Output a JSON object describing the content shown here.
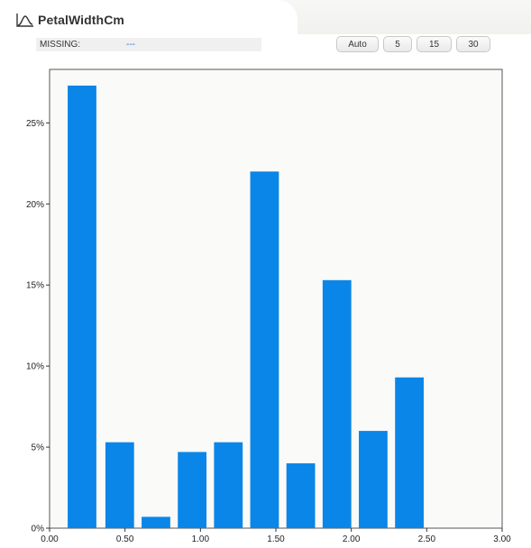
{
  "header": {
    "title": "PetalWidthCm"
  },
  "missing": {
    "label": "MISSING:",
    "value": "---"
  },
  "bin_buttons": [
    "Auto",
    "5",
    "15",
    "30"
  ],
  "chart_data": {
    "type": "bar",
    "title": "",
    "xlabel": "",
    "ylabel": "",
    "x_ticks": [
      "0.00",
      "0.50",
      "1.00",
      "1.50",
      "2.00",
      "2.50",
      "3.00"
    ],
    "y_ticks": [
      "0%",
      "5%",
      "10%",
      "15%",
      "20%",
      "25%"
    ],
    "xlim": [
      0,
      3
    ],
    "ylim": [
      0,
      28.3
    ],
    "bin_width": 0.24,
    "bins": [
      {
        "x_start": 0.12,
        "x_end": 0.31,
        "value": 27.3
      },
      {
        "x_start": 0.37,
        "x_end": 0.56,
        "value": 5.3
      },
      {
        "x_start": 0.61,
        "x_end": 0.8,
        "value": 0.7
      },
      {
        "x_start": 0.85,
        "x_end": 1.04,
        "value": 4.7
      },
      {
        "x_start": 1.09,
        "x_end": 1.28,
        "value": 5.3
      },
      {
        "x_start": 1.33,
        "x_end": 1.52,
        "value": 22.0
      },
      {
        "x_start": 1.57,
        "x_end": 1.76,
        "value": 4.0
      },
      {
        "x_start": 1.81,
        "x_end": 2.0,
        "value": 15.3
      },
      {
        "x_start": 2.05,
        "x_end": 2.24,
        "value": 6.0
      },
      {
        "x_start": 2.29,
        "x_end": 2.48,
        "value": 9.3
      }
    ],
    "bar_color": "#0a86e8",
    "grid": false,
    "legend": "none"
  }
}
